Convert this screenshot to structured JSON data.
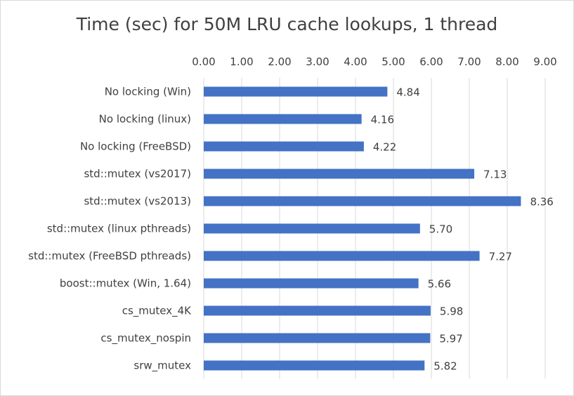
{
  "chart_data": {
    "type": "bar",
    "orientation": "horizontal",
    "title": "Time (sec) for 50M LRU cache lookups, 1 thread",
    "xlabel": "",
    "ylabel": "",
    "xlim": [
      0,
      9
    ],
    "x_axis_position": "top",
    "grid": true,
    "legend": "none",
    "tick_labels": [
      "0.00",
      "1.00",
      "2.00",
      "3.00",
      "4.00",
      "5.00",
      "6.00",
      "7.00",
      "8.00",
      "9.00"
    ],
    "categories": [
      "No locking (Win)",
      "No locking (linux)",
      "No locking (FreeBSD)",
      "std::mutex (vs2017)",
      "std::mutex (vs2013)",
      "std::mutex (linux pthreads)",
      "std::mutex (FreeBSD pthreads)",
      "boost::mutex (Win, 1.64)",
      "cs_mutex_4K",
      "cs_mutex_nospin",
      "srw_mutex"
    ],
    "values": [
      4.84,
      4.16,
      4.22,
      7.13,
      8.36,
      5.7,
      7.27,
      5.66,
      5.98,
      5.97,
      5.82
    ],
    "value_labels": [
      "4.84",
      "4.16",
      "4.22",
      "7.13",
      "8.36",
      "5.70",
      "7.27",
      "5.66",
      "5.98",
      "5.97",
      "5.82"
    ],
    "colors": {
      "bar": "#4472c4",
      "grid": "#d9d9d9",
      "text": "#404040"
    }
  }
}
